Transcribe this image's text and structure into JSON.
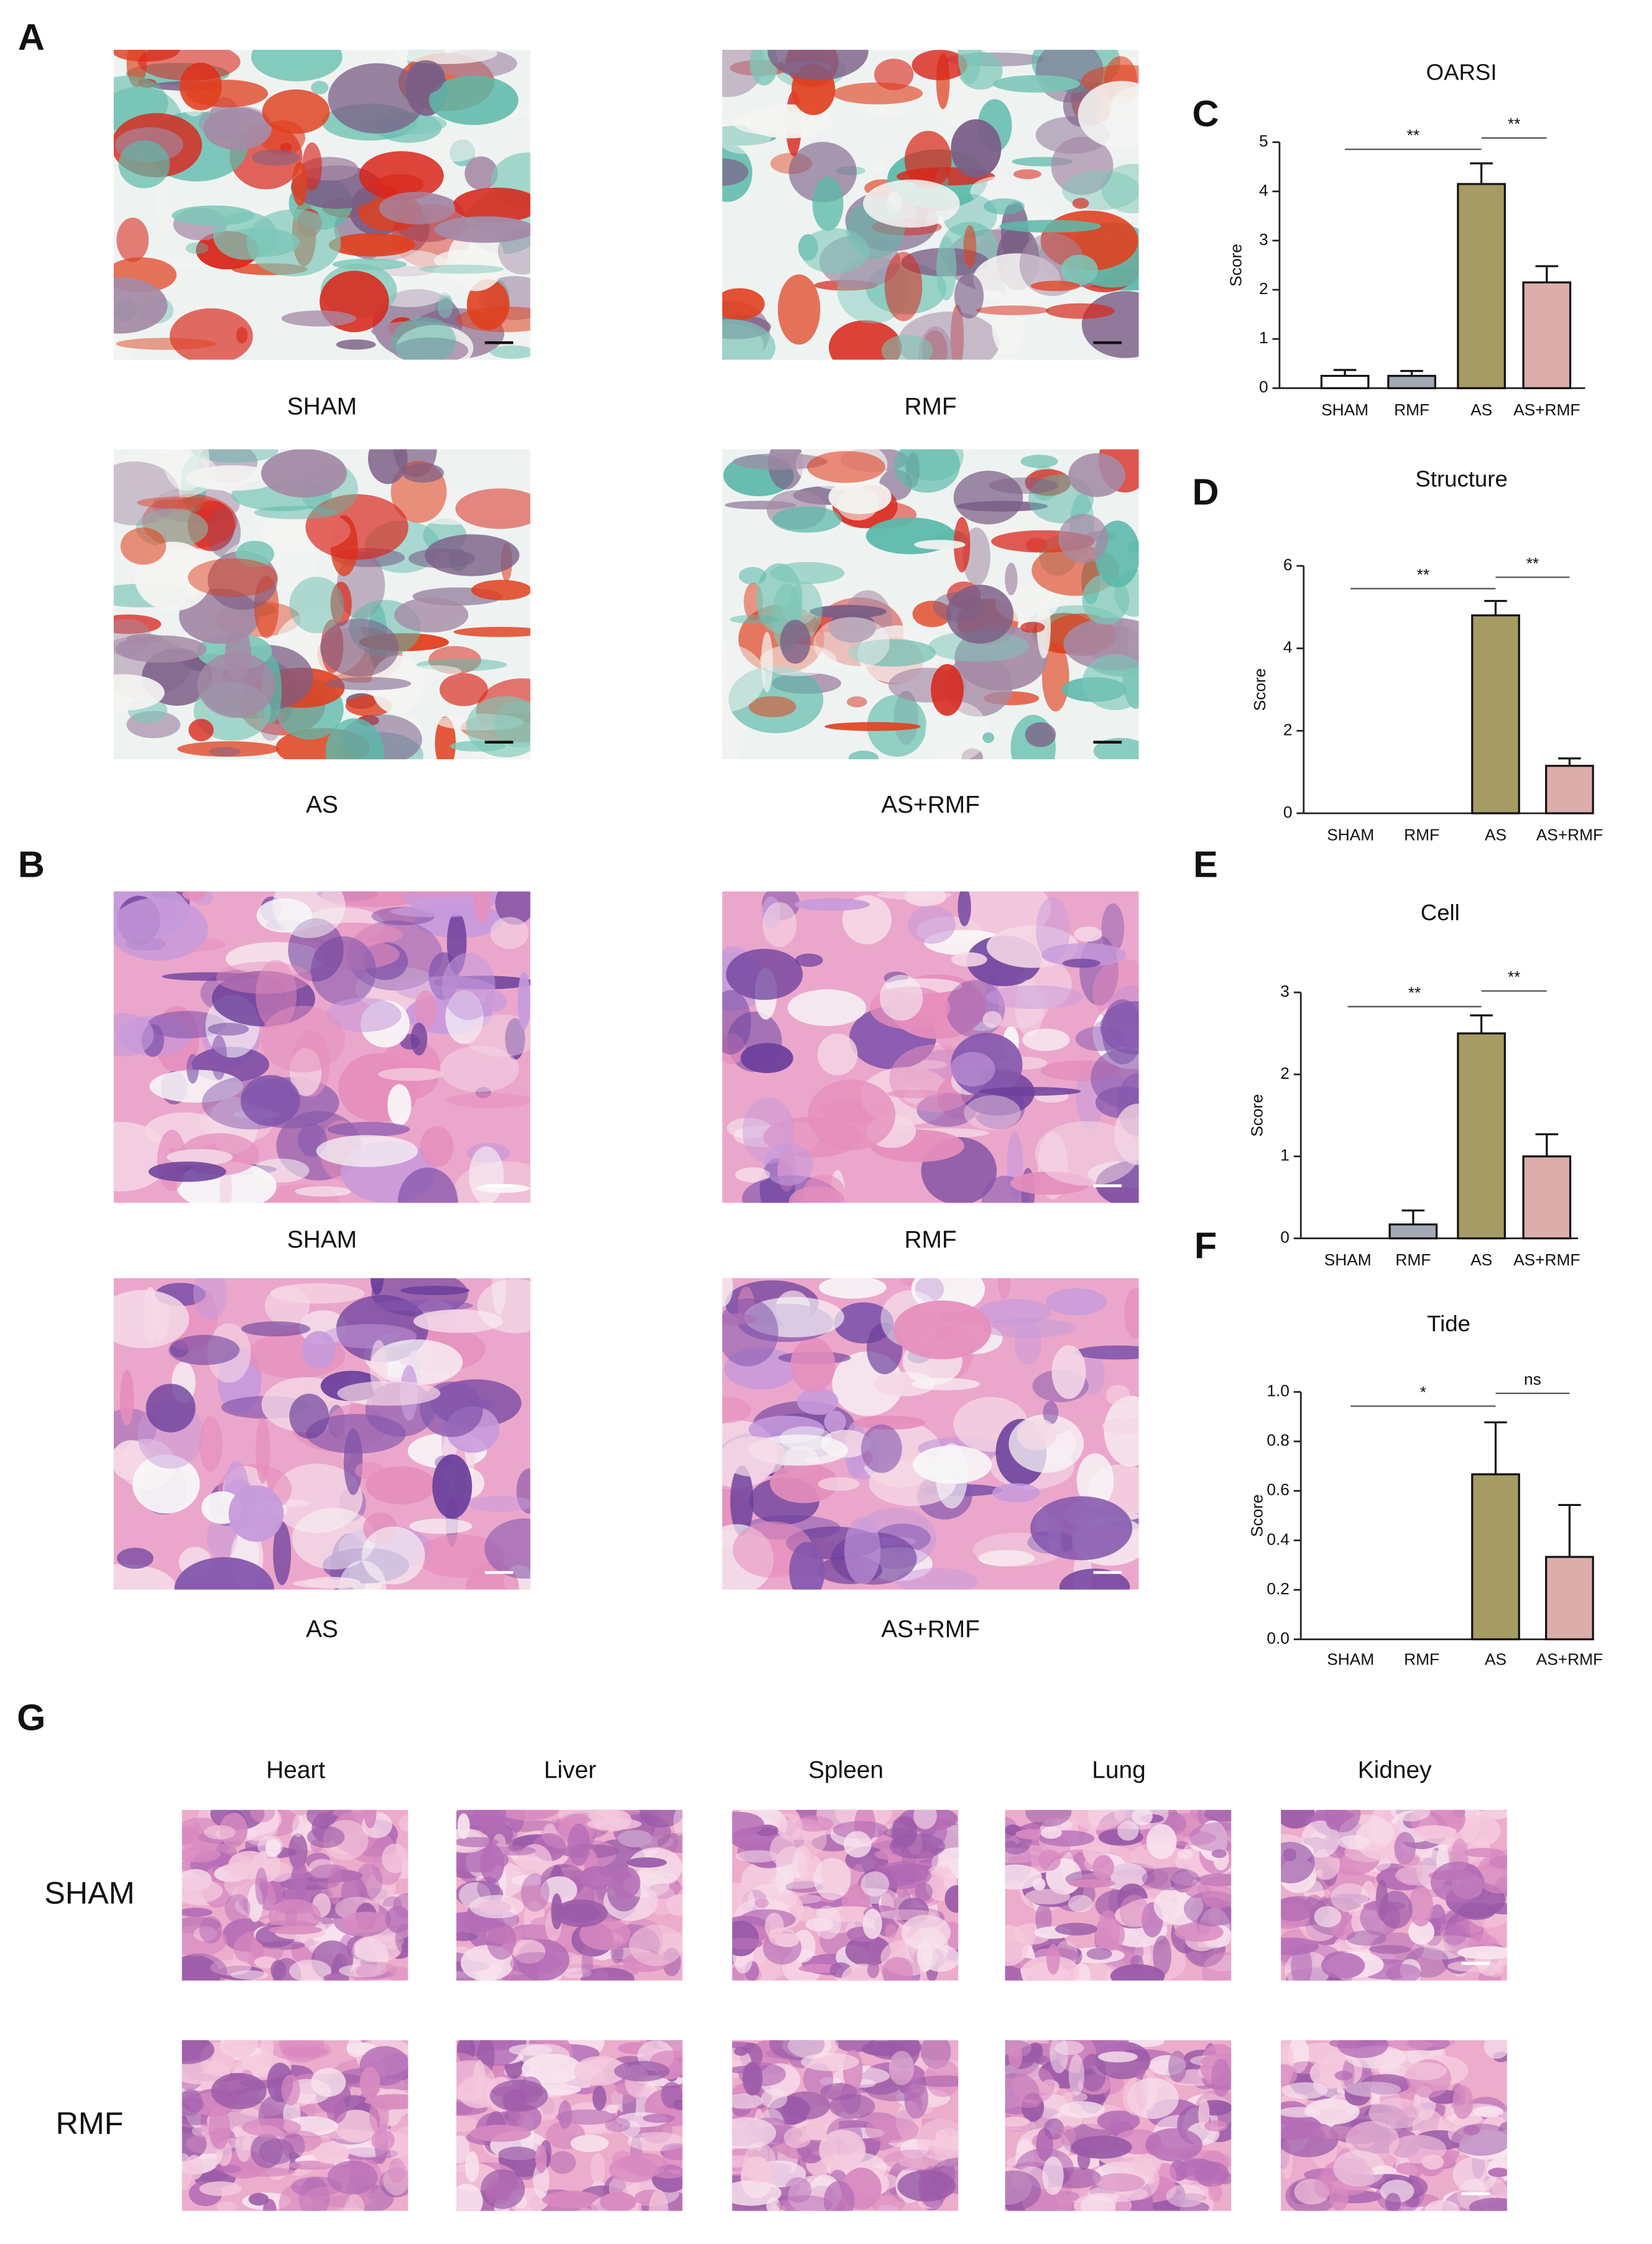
{
  "panel_labels": [
    "A",
    "B",
    "C",
    "D",
    "E",
    "F",
    "G"
  ],
  "panel_a": {
    "captions": [
      "SHAM",
      "RMF",
      "AS",
      "AS+RMF"
    ]
  },
  "panel_b": {
    "captions": [
      "SHAM",
      "RMF",
      "AS",
      "AS+RMF"
    ]
  },
  "panel_g": {
    "columns": [
      "Heart",
      "Liver",
      "Spleen",
      "Lung",
      "Kidney"
    ],
    "rows": [
      "SHAM",
      "RMF"
    ]
  },
  "chart_data": [
    {
      "type": "bar",
      "title": "OARSI",
      "y_label": "Score",
      "categories": [
        "SHAM",
        "RMF",
        "AS",
        "AS+RMF"
      ],
      "values": [
        0.25,
        0.25,
        4.15,
        2.15
      ],
      "errors": [
        0.12,
        0.1,
        0.42,
        0.33
      ],
      "colors": [
        "#ffffff",
        "#a3a8b5",
        "#a69c63",
        "#dbaeac"
      ],
      "ylim": [
        0,
        5
      ],
      "yticks": [
        0,
        1,
        2,
        3,
        4,
        5
      ],
      "brackets": [
        {
          "label": "**",
          "from": "SHAM",
          "to": "AS"
        },
        {
          "label": "**",
          "from": "AS",
          "to": "AS+RMF"
        }
      ]
    },
    {
      "type": "bar",
      "title": "Structure",
      "y_label": "Score",
      "categories": [
        "SHAM",
        "RMF",
        "AS",
        "AS+RMF"
      ],
      "values": [
        0,
        0,
        4.8,
        1.15
      ],
      "errors": [
        0,
        0,
        0.35,
        0.18
      ],
      "colors": [
        "#ffffff",
        "#a3a8b5",
        "#a69c63",
        "#dbaeac"
      ],
      "ylim": [
        0,
        6
      ],
      "yticks": [
        0,
        2,
        4,
        6
      ],
      "brackets": [
        {
          "label": "**",
          "from": "SHAM",
          "to": "AS"
        },
        {
          "label": "**",
          "from": "AS",
          "to": "AS+RMF"
        }
      ]
    },
    {
      "type": "bar",
      "title": "Cell",
      "y_label": "Score",
      "categories": [
        "SHAM",
        "RMF",
        "AS",
        "AS+RMF"
      ],
      "values": [
        0,
        0.17,
        2.5,
        1.0
      ],
      "errors": [
        0,
        0.17,
        0.22,
        0.27
      ],
      "colors": [
        "#ffffff",
        "#a3a8b5",
        "#a69c63",
        "#dbaeac"
      ],
      "ylim": [
        0,
        3
      ],
      "yticks": [
        0,
        1,
        2,
        3
      ],
      "brackets": [
        {
          "label": "**",
          "from": "SHAM",
          "to": "AS"
        },
        {
          "label": "**",
          "from": "AS",
          "to": "AS+RMF"
        }
      ]
    },
    {
      "type": "bar",
      "title": "Tide",
      "y_label": "Score",
      "categories": [
        "SHAM",
        "RMF",
        "AS",
        "AS+RMF"
      ],
      "values": [
        0,
        0,
        0.667,
        0.333
      ],
      "errors": [
        0,
        0,
        0.21,
        0.21
      ],
      "colors": [
        "#ffffff",
        "#a3a8b5",
        "#a69c63",
        "#dbaeac"
      ],
      "ylim": [
        0,
        1
      ],
      "yticks": [
        {
          "value": 0,
          "label": "0.0"
        },
        0.2,
        0.4,
        0.6,
        0.8,
        {
          "value": 1,
          "label": "1.0"
        }
      ],
      "brackets": [
        {
          "label": "*",
          "from": "SHAM",
          "to": "AS"
        },
        {
          "label": "ns",
          "from": "AS",
          "to": "AS+RMF"
        }
      ]
    }
  ]
}
